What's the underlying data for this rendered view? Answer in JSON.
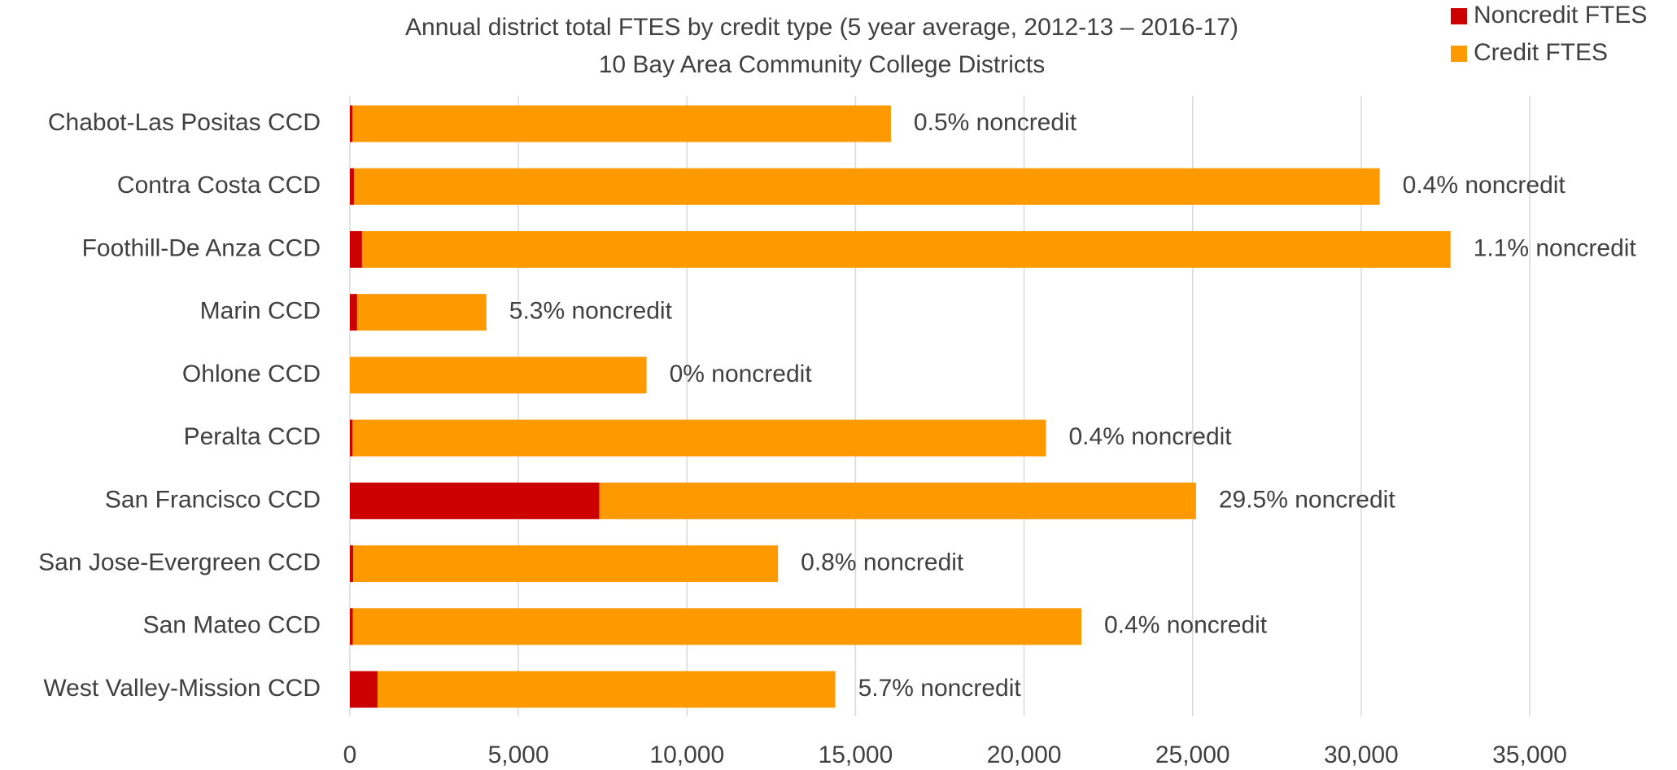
{
  "chart_data": {
    "type": "stacked_barh",
    "title": "Annual district total FTES by credit type (5 year average, 2012-13 – 2016-17)",
    "subtitle": "10 Bay Area Community College Districts",
    "categories": [
      "Chabot-Las Positas CCD",
      "Contra Costa CCD",
      "Foothill-De Anza CCD",
      "Marin CCD",
      "Ohlone CCD",
      "Peralta CCD",
      "San Francisco CCD",
      "San Jose-Evergreen CCD",
      "San Mateo CCD",
      "West Valley-Mission CCD"
    ],
    "series": [
      {
        "name": "Noncredit FTES",
        "color": "#cc0000",
        "values": [
          80,
          120,
          360,
          215,
          0,
          80,
          7400,
          100,
          90,
          820
        ]
      },
      {
        "name": "Credit FTES",
        "color": "#ff9900",
        "values": [
          15970,
          30430,
          32290,
          3835,
          8800,
          20570,
          17700,
          12600,
          21610,
          13580
        ]
      }
    ],
    "annotations": [
      "0.5% noncredit",
      "0.4% noncredit",
      "1.1% noncredit",
      "5.3% noncredit",
      "0% noncredit",
      "0.4% noncredit",
      "29.5% noncredit",
      "0.8% noncredit",
      "0.4% noncredit",
      "5.7% noncredit"
    ],
    "xlim": [
      0,
      35000
    ],
    "xticks": [
      0,
      {
        "value": 5000,
        "label": "5,000"
      },
      {
        "value": 10000,
        "label": "10,000"
      },
      {
        "value": 15000,
        "label": "15,000"
      },
      {
        "value": 20000,
        "label": "20,000"
      },
      {
        "value": 25000,
        "label": "25,000"
      },
      {
        "value": 30000,
        "label": "30,000"
      },
      {
        "value": 35000,
        "label": "35,000"
      }
    ],
    "grid": true,
    "legend": "top-right"
  }
}
